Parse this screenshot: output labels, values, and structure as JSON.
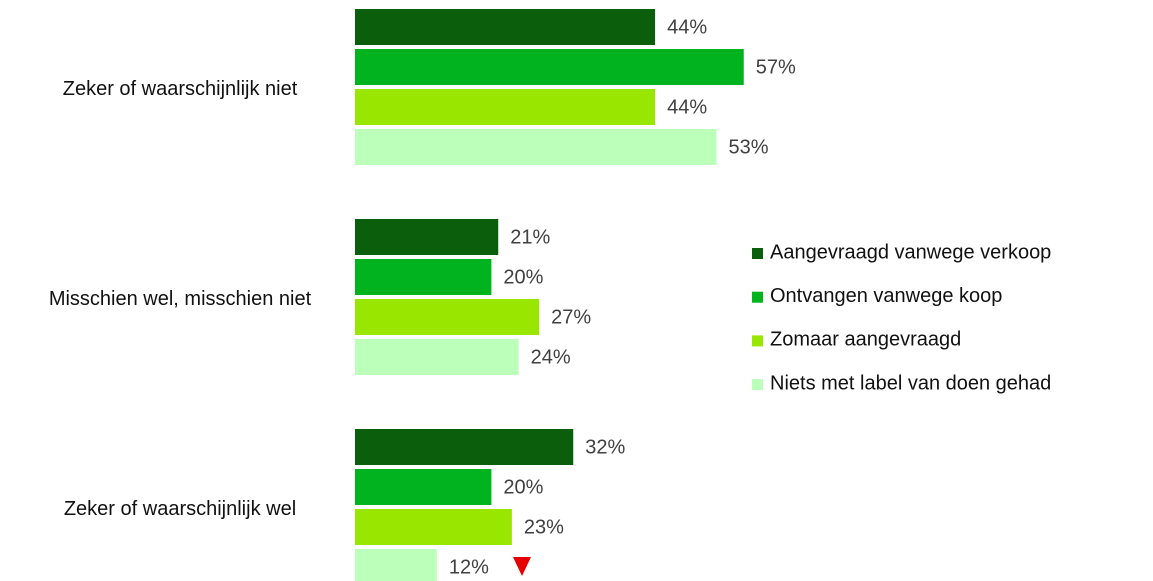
{
  "chart_data": {
    "type": "bar",
    "orientation": "horizontal",
    "categories": [
      "Zeker of waarschijnlijk niet",
      "Misschien wel, misschien niet",
      "Zeker of waarschijnlijk wel"
    ],
    "series": [
      {
        "name": "Aangevraagd vanwege verkoop",
        "color": "#0b5e0b",
        "values": [
          44,
          21,
          32
        ],
        "value_labels": [
          "44%",
          "21%",
          "32%"
        ]
      },
      {
        "name": "Ontvangen vanwege koop",
        "color": "#00b31f",
        "values": [
          57,
          20,
          20
        ],
        "value_labels": [
          "57%",
          "20%",
          "20%"
        ]
      },
      {
        "name": "Zomaar aangevraagd",
        "color": "#99e600",
        "values": [
          44,
          27,
          23
        ],
        "value_labels": [
          "44%",
          "27%",
          "23%"
        ]
      },
      {
        "name": "Niets met label van doen gehad",
        "color": "#bbffbb",
        "values": [
          53,
          24,
          12
        ],
        "value_labels": [
          "53%",
          "24%",
          "12%"
        ]
      }
    ],
    "legend": "right"
  }
}
